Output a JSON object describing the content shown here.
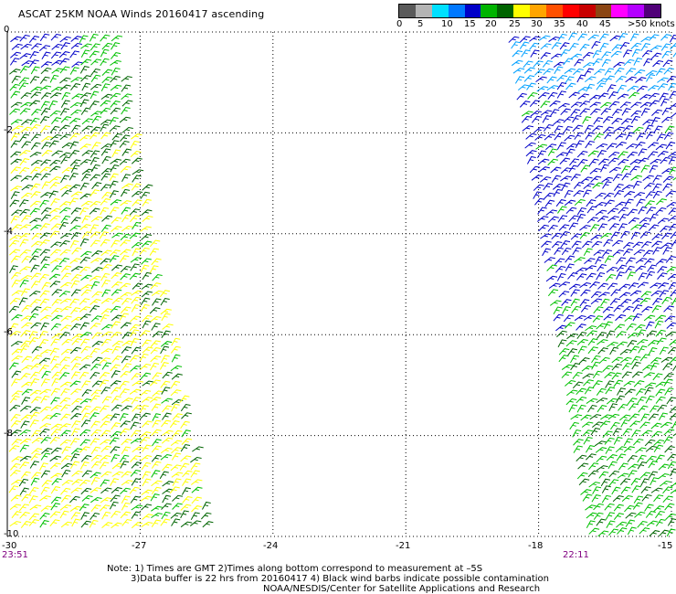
{
  "title": "ASCAT 25KM NOAA Winds 20160417 ascending",
  "legend": {
    "colors": [
      "#5a5a5a",
      "#b4b4b4",
      "#00e0ff",
      "#0078ff",
      "#0000c8",
      "#00b400",
      "#006400",
      "#ffff00",
      "#ffa500",
      "#ff5000",
      "#ff0000",
      "#c80000",
      "#8b4513",
      "#ff00ff",
      "#b400ff",
      "#500078"
    ],
    "labels": [
      "0",
      "5",
      "10",
      "15",
      "20",
      "25",
      "30",
      "35",
      "40",
      "45",
      ">50 knots"
    ]
  },
  "map": {
    "x_ticks": [
      "-30",
      "-27",
      "-24",
      "-21",
      "-18",
      "-15"
    ],
    "y_ticks": [
      "0",
      "-2",
      "-4",
      "-6",
      "-8",
      "-10"
    ],
    "lon_range": [
      -30,
      -15
    ],
    "lat_range": [
      0,
      -10
    ],
    "grid": "dotted"
  },
  "swaths": {
    "left_time": "23:51",
    "right_time": "22:11",
    "barb_colors": {
      "dark_blue": "#0000c8",
      "light_blue": "#00a0ff",
      "green": "#00c000",
      "dark_green": "#006400",
      "yellow": "#ffff00"
    }
  },
  "notes": [
    "Note: 1) Times are GMT 2)Times along bottom correspond to measurement at –5S",
    "3)Data buffer is 22 hrs from 20160417 4) Black wind barbs indicate possible contamination",
    "NOAA/NESDIS/Center for Satellite Applications and Research"
  ]
}
